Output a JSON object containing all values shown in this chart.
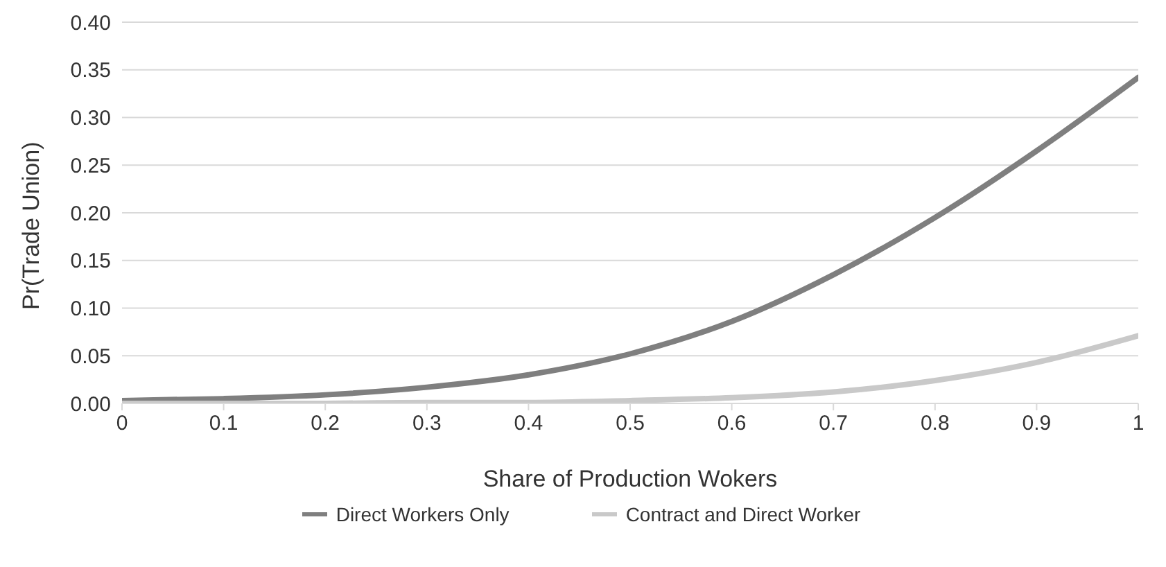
{
  "chart_data": {
    "type": "line",
    "xlabel": "Share of Production Wokers",
    "ylabel": "Pr(Trade Union)",
    "x": [
      0,
      0.1,
      0.2,
      0.3,
      0.4,
      0.5,
      0.6,
      0.7,
      0.8,
      0.9,
      1
    ],
    "series": [
      {
        "name": "Direct Workers Only",
        "color": "#7f7f7f",
        "values": [
          0.003,
          0.005,
          0.009,
          0.017,
          0.03,
          0.052,
          0.086,
          0.135,
          0.195,
          0.265,
          0.342
        ]
      },
      {
        "name": "Contract and Direct Worker",
        "color": "#c9c9c9",
        "values": [
          0,
          0,
          0,
          0.001,
          0.001,
          0.003,
          0.006,
          0.012,
          0.024,
          0.043,
          0.071
        ]
      }
    ],
    "xlim": [
      0,
      1
    ],
    "xticks": [
      0,
      0.1,
      0.2,
      0.3,
      0.4,
      0.5,
      0.6,
      0.7,
      0.8,
      0.9,
      1
    ],
    "ylim": [
      0,
      0.4
    ],
    "yticks": [
      {
        "value": 0,
        "label": "0.00"
      },
      {
        "value": 0.05,
        "label": "0.05"
      },
      {
        "value": 0.1,
        "label": "0.10"
      },
      {
        "value": 0.15,
        "label": "0.15"
      },
      {
        "value": 0.2,
        "label": "0.20"
      },
      {
        "value": 0.25,
        "label": "0.25"
      },
      {
        "value": 0.3,
        "label": "0.30"
      },
      {
        "value": 0.35,
        "label": "0.35"
      },
      {
        "value": 0.4,
        "label": "0.40"
      }
    ],
    "grid": "y",
    "legend": "bottom",
    "marker": "none",
    "line_style": "solid"
  }
}
